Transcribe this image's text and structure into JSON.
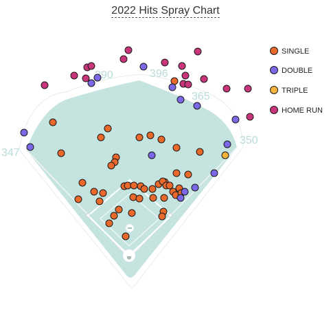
{
  "chart_data": {
    "type": "scatter",
    "title": "2022 Hits Spray Chart",
    "distances": [
      {
        "label": "347"
      },
      {
        "label": "390"
      },
      {
        "label": "396"
      },
      {
        "label": "365"
      },
      {
        "label": "350"
      }
    ],
    "legend": [
      {
        "name": "SINGLE",
        "color": "#e8692b"
      },
      {
        "name": "DOUBLE",
        "color": "#7b68e6"
      },
      {
        "name": "TRIPLE",
        "color": "#f3b33c"
      },
      {
        "name": "HOME RUN",
        "color": "#c8357a"
      }
    ],
    "series": [
      {
        "name": "SINGLE",
        "points": [
          [
            77,
            178
          ],
          [
            157,
            187
          ],
          [
            147,
            200
          ],
          [
            89,
            223
          ],
          [
            169,
            229
          ],
          [
            167,
            236
          ],
          [
            162,
            241
          ],
          [
            203,
            200
          ],
          [
            219,
            197
          ],
          [
            235,
            203
          ],
          [
            257,
            215
          ],
          [
            291,
            221
          ],
          [
            254,
            118
          ],
          [
            274,
            254
          ],
          [
            257,
            252
          ],
          [
            240,
            265
          ],
          [
            120,
            266
          ],
          [
            137,
            279
          ],
          [
            150,
            281
          ],
          [
            114,
            290
          ],
          [
            145,
            293
          ],
          [
            181,
            271
          ],
          [
            186,
            270
          ],
          [
            195,
            270
          ],
          [
            205,
            271
          ],
          [
            210,
            275
          ],
          [
            222,
            275
          ],
          [
            231,
            268
          ],
          [
            237,
            264
          ],
          [
            242,
            270
          ],
          [
            247,
            270
          ],
          [
            252,
            279
          ],
          [
            261,
            274
          ],
          [
            256,
            284
          ],
          [
            194,
            287
          ],
          [
            203,
            289
          ],
          [
            223,
            288
          ],
          [
            239,
            288
          ],
          [
            264,
            281
          ],
          [
            173,
            305
          ],
          [
            166,
            314
          ],
          [
            192,
            310
          ],
          [
            238,
            308
          ],
          [
            236,
            315
          ],
          [
            159,
            325
          ],
          [
            183,
            344
          ]
        ]
      },
      {
        "name": "DOUBLE",
        "points": [
          [
            35,
            193
          ],
          [
            44,
            214
          ],
          [
            133,
            121
          ],
          [
            142,
            113
          ],
          [
            209,
            97
          ],
          [
            251,
            127
          ],
          [
            263,
            145
          ],
          [
            287,
            154
          ],
          [
            343,
            174
          ],
          [
            331,
            210
          ],
          [
            221,
            226
          ],
          [
            312,
            252
          ],
          [
            284,
            273
          ],
          [
            269,
            279
          ],
          [
            263,
            288
          ]
        ]
      },
      {
        "name": "TRIPLE",
        "points": [
          [
            328,
            226
          ]
        ]
      },
      {
        "name": "HOME RUN",
        "points": [
          [
            65,
            124
          ],
          [
            108,
            110
          ],
          [
            125,
            114
          ],
          [
            127,
            98
          ],
          [
            133,
            96
          ],
          [
            180,
            86
          ],
          [
            187,
            73
          ],
          [
            240,
            91
          ],
          [
            265,
            96
          ],
          [
            288,
            75
          ],
          [
            270,
            110
          ],
          [
            267,
            122
          ],
          [
            274,
            123
          ],
          [
            297,
            115
          ],
          [
            330,
            129
          ],
          [
            361,
            129
          ],
          [
            364,
            170
          ]
        ]
      }
    ]
  }
}
